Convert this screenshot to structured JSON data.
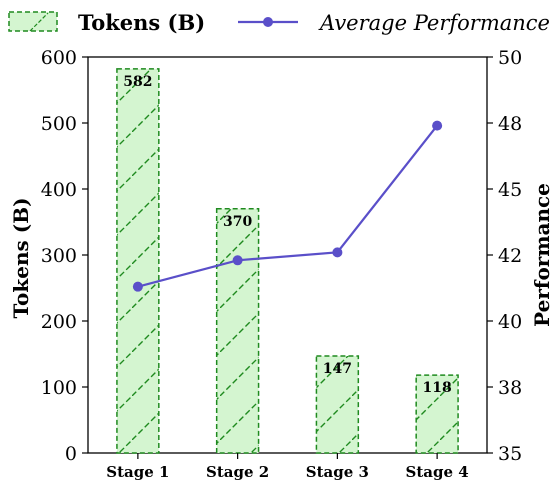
{
  "chart_data": {
    "type": "bar+line",
    "categories": [
      "Stage 1",
      "Stage 2",
      "Stage 3",
      "Stage 4"
    ],
    "bars": {
      "name": "Tokens (B)",
      "values": [
        582,
        370,
        147,
        118
      ],
      "data_labels": [
        "582",
        "370",
        "147",
        "118"
      ],
      "color_fill": "#d4f5d0",
      "color_edge": "#1f8a1f"
    },
    "line": {
      "name": "Average Performance",
      "values": [
        41.3,
        42.3,
        42.6,
        47.4
      ],
      "color": "#5a4fc9"
    },
    "ylabel_left": "Tokens (B)",
    "ylabel_right": "Performance",
    "ylim_left": [
      0,
      600
    ],
    "ylim_right": [
      35,
      50
    ],
    "yticks_left": [
      0,
      100,
      200,
      300,
      400,
      500,
      600
    ],
    "yticks_right_labels": [
      "35",
      "38",
      "40",
      "42",
      "45",
      "48",
      "50"
    ],
    "legend": {
      "placement": "top",
      "items": [
        {
          "label": "Tokens (B)",
          "kind": "bar"
        },
        {
          "label": "Average Performance",
          "kind": "line"
        }
      ]
    },
    "grid": false
  }
}
